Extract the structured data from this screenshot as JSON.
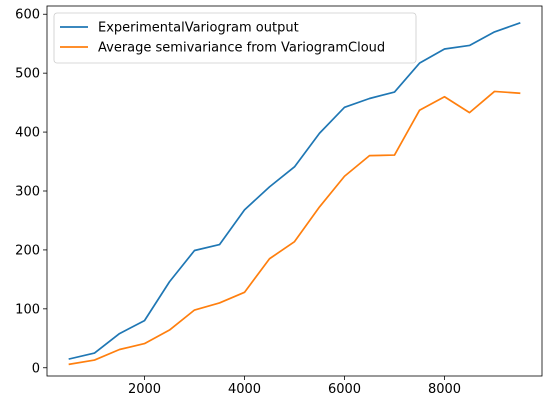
{
  "chart_data": {
    "type": "line",
    "title": "",
    "xlabel": "",
    "ylabel": "",
    "xlim": [
      50,
      9950
    ],
    "ylim": [
      -14,
      614
    ],
    "x_ticks": [
      2000,
      4000,
      6000,
      8000
    ],
    "x_tick_labels": [
      "2000",
      "4000",
      "6000",
      "8000"
    ],
    "y_ticks": [
      0,
      100,
      200,
      300,
      400,
      500,
      600
    ],
    "y_tick_labels": [
      "0",
      "100",
      "200",
      "300",
      "400",
      "500",
      "600"
    ],
    "grid": false,
    "legend_position": "upper-left",
    "x": [
      500,
      1000,
      1500,
      2000,
      2500,
      3000,
      3500,
      4000,
      4500,
      5000,
      5500,
      6000,
      6500,
      7000,
      7500,
      8000,
      8500,
      9000,
      9500
    ],
    "series": [
      {
        "name": "ExperimentalVariogram output",
        "color": "#1f77b4",
        "values": [
          15,
          25,
          58,
          80,
          146,
          199,
          209,
          268,
          307,
          341,
          398,
          442,
          457,
          468,
          517,
          541,
          547,
          570,
          585
        ]
      },
      {
        "name": "Average semivariance from VariogramCloud",
        "color": "#ff7f0e",
        "values": [
          6,
          13,
          31,
          41,
          64,
          98,
          110,
          128,
          185,
          214,
          273,
          325,
          360,
          361,
          437,
          460,
          433,
          469,
          466
        ]
      }
    ]
  }
}
